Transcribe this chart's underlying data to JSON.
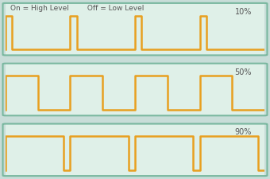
{
  "panels": [
    {
      "duty": 0.1,
      "label": "10%",
      "show_legend": true,
      "legend_text": "On = High Level        Off = Low Level"
    },
    {
      "duty": 0.5,
      "label": "50%",
      "show_legend": false,
      "legend_text": ""
    },
    {
      "duty": 0.9,
      "label": "90%",
      "show_legend": false,
      "legend_text": ""
    }
  ],
  "bg_color": "#dff0e8",
  "border_color": "#7ab8a0",
  "line_color": "#e8a020",
  "line_width": 1.8,
  "num_cycles": 4,
  "text_color": "#555555",
  "label_fontsize": 7,
  "legend_fontsize": 6.5
}
